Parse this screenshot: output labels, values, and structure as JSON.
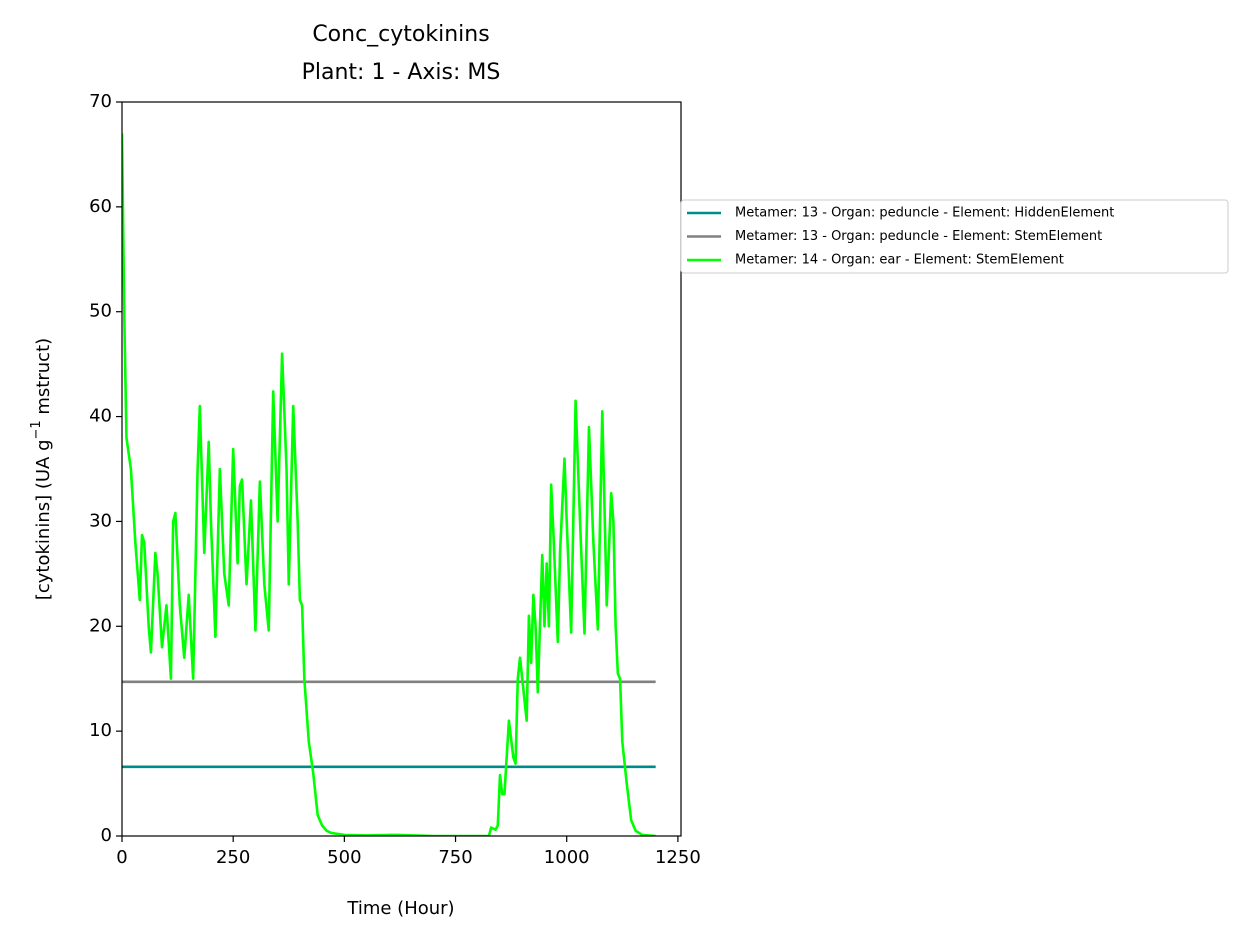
{
  "chart_data": {
    "type": "line",
    "title": "Conc_cytokinins",
    "subtitle": "Plant: 1 - Axis: MS",
    "xlabel": "Time (Hour)",
    "ylabel": {
      "text": "[cytokinins] (UA g",
      "superscript": "−1",
      "tail": " mstruct)"
    },
    "xlim": [
      0,
      1257
    ],
    "ylim": [
      0,
      70
    ],
    "xticks": [
      0,
      250,
      500,
      750,
      1000,
      1250
    ],
    "yticks": [
      0,
      10,
      20,
      30,
      40,
      50,
      60,
      70
    ],
    "legend": "outside upper right",
    "series": [
      {
        "name": "Metamer: 13 - Organ: peduncle - Element: HiddenElement",
        "color": "#008b8b",
        "x": [
          0,
          1200
        ],
        "values": [
          6.6,
          6.6
        ]
      },
      {
        "name": "Metamer: 13 - Organ: peduncle - Element: StemElement",
        "color": "#808080",
        "x": [
          0,
          1200
        ],
        "values": [
          14.7,
          14.7
        ]
      },
      {
        "name": "Metamer: 14 - Organ: ear - Element: StemElement",
        "color": "#00ff00",
        "x": [
          0,
          5,
          10,
          20,
          30,
          40,
          45,
          50,
          60,
          65,
          75,
          80,
          90,
          95,
          100,
          110,
          115,
          120,
          130,
          140,
          150,
          160,
          170,
          175,
          185,
          195,
          200,
          210,
          220,
          230,
          240,
          250,
          260,
          265,
          270,
          280,
          290,
          300,
          310,
          320,
          330,
          340,
          350,
          360,
          370,
          375,
          385,
          395,
          400,
          405,
          410,
          420,
          430,
          440,
          450,
          460,
          470,
          500,
          550,
          600,
          620,
          700,
          800,
          825,
          830,
          840,
          845,
          850,
          855,
          860,
          870,
          880,
          885,
          890,
          895,
          905,
          910,
          915,
          920,
          925,
          930,
          935,
          945,
          950,
          955,
          960,
          965,
          970,
          980,
          985,
          995,
          1000,
          1010,
          1020,
          1030,
          1040,
          1050,
          1060,
          1070,
          1080,
          1090,
          1100,
          1105,
          1110,
          1115,
          1120,
          1125,
          1135,
          1145,
          1155,
          1170,
          1200
        ],
        "values": [
          67,
          50,
          38,
          35,
          28,
          22.5,
          28.7,
          28,
          20,
          17.5,
          27,
          25,
          18,
          20,
          22,
          15,
          30,
          30.8,
          22,
          17,
          23,
          15,
          35,
          41,
          27,
          37.6,
          30,
          19,
          35,
          25,
          22,
          36.9,
          26,
          33.4,
          34,
          24,
          32,
          19.6,
          33.8,
          24,
          19.6,
          42.4,
          30,
          46,
          35,
          24,
          41,
          30,
          22.5,
          22,
          15,
          9,
          6,
          2,
          1,
          0.5,
          0.3,
          0.1,
          0.05,
          0.1,
          0.1,
          0,
          0,
          0,
          0.8,
          0.6,
          1,
          5.8,
          4,
          4,
          11,
          7.5,
          6.9,
          15,
          17,
          13,
          11,
          21,
          16.5,
          23,
          20,
          13.7,
          26.8,
          20,
          26,
          20,
          33.5,
          29,
          18.5,
          27,
          36,
          30,
          19.4,
          41.5,
          30,
          19.3,
          39,
          28,
          19.7,
          40.5,
          22,
          32.7,
          30,
          20,
          15.5,
          15,
          9,
          5,
          1.5,
          0.5,
          0.1,
          0
        ]
      }
    ]
  }
}
